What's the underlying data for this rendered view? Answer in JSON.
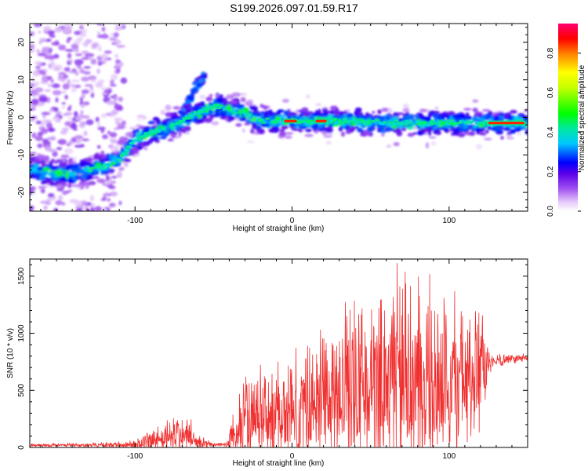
{
  "title": "S199.2026.097.01.59.R17",
  "chart_data": [
    {
      "type": "heatmap",
      "name": "spectrogram",
      "xlabel": "Height of straight line (km)",
      "ylabel": "Frequency (Hz)",
      "xlim": [
        -167,
        150
      ],
      "ylim": [
        -25,
        25
      ],
      "xticks": [
        -100,
        0,
        100
      ],
      "yticks": [
        -20,
        -10,
        0,
        10,
        20
      ],
      "ridge": {
        "x": [
          -165,
          -150,
          -135,
          -120,
          -110,
          -100,
          -90,
          -80,
          -70,
          -62,
          -55,
          -48,
          -40,
          -30,
          -20,
          -10,
          0,
          20,
          40,
          60,
          80,
          100,
          120,
          148
        ],
        "frequency": [
          -14,
          -15,
          -14.5,
          -13,
          -11,
          -6,
          -4,
          -3,
          -1,
          1,
          2,
          3,
          2,
          1,
          -1,
          -1,
          -1,
          -1,
          -1,
          -1.5,
          -1.5,
          -1.5,
          -1.5,
          -1.5
        ]
      },
      "branch": {
        "x": [
          -70,
          -65,
          -60,
          -55
        ],
        "frequency": [
          0,
          5,
          9,
          11
        ]
      },
      "colorbar": {
        "label": "Normalized spectral amplitude",
        "ticks": [
          "0.0",
          "0.2",
          "0.4",
          "0.6",
          "0.8"
        ],
        "range": [
          0,
          0.95
        ]
      }
    },
    {
      "type": "line",
      "name": "snr",
      "xlabel": "Height of straight line (km)",
      "ylabel": "SNR (10 * v/v)",
      "xlim": [
        -167,
        150
      ],
      "ylim": [
        0,
        1650
      ],
      "xticks": [
        -100,
        0,
        100
      ],
      "yticks": [
        0,
        500,
        1000,
        1500
      ],
      "color": "#f03030",
      "envelope_x": [
        -167,
        -120,
        -100,
        -90,
        -80,
        -70,
        -65,
        -58,
        -50,
        -42,
        -35,
        -30,
        -20,
        -10,
        0,
        10,
        20,
        30,
        40,
        50,
        60,
        70,
        80,
        90,
        100,
        110,
        120,
        127,
        135,
        150
      ],
      "envelope_base": [
        20,
        20,
        25,
        60,
        90,
        110,
        90,
        40,
        25,
        25,
        150,
        220,
        250,
        280,
        320,
        380,
        450,
        520,
        570,
        590,
        600,
        600,
        580,
        570,
        570,
        600,
        620,
        760,
        770,
        790
      ],
      "envelope_amp": [
        15,
        20,
        40,
        120,
        120,
        220,
        150,
        50,
        20,
        20,
        250,
        400,
        450,
        450,
        500,
        550,
        600,
        650,
        700,
        750,
        780,
        800,
        820,
        800,
        780,
        650,
        550,
        60,
        50,
        40
      ]
    }
  ]
}
